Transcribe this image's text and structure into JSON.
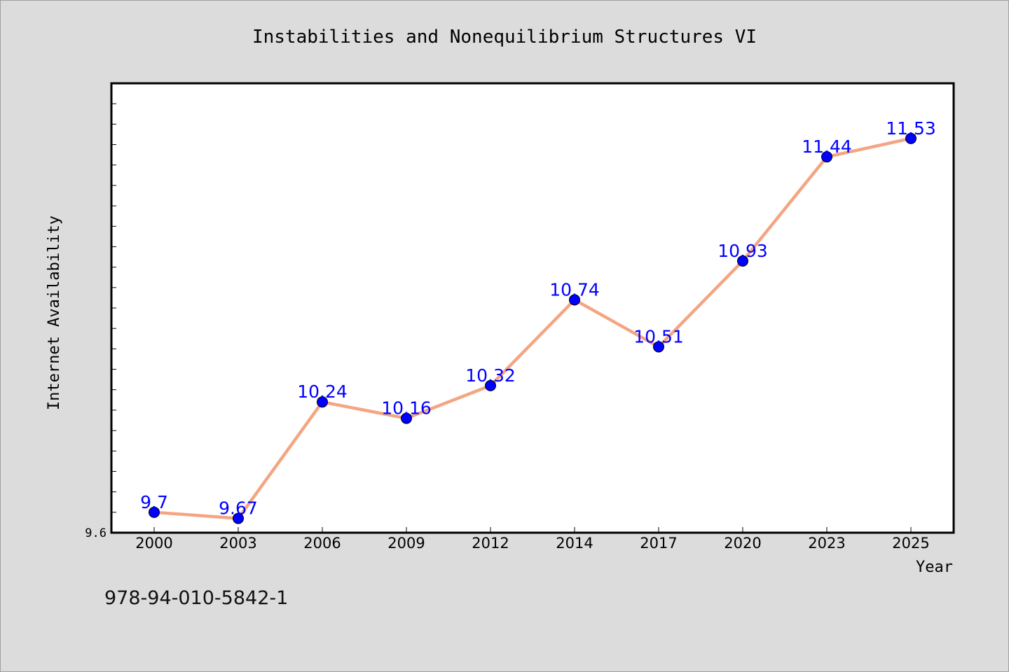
{
  "page": {
    "footer_code": "978-94-010-5842-1"
  },
  "colors": {
    "background": "#dcdcdc",
    "plot_background": "#ffffff",
    "line": "#f4a582",
    "marker": "#0000ff",
    "data_label": "#0000ff"
  },
  "chart_data": {
    "type": "line",
    "title": "Instabilities and Nonequilibrium Structures VI",
    "xlabel": "Year",
    "ylabel": "Internet Availability",
    "categories": [
      "2000",
      "2003",
      "2006",
      "2009",
      "2012",
      "2014",
      "2017",
      "2020",
      "2023",
      "2025"
    ],
    "series": [
      {
        "values": [
          9.7,
          9.67,
          10.24,
          10.16,
          10.32,
          10.74,
          10.51,
          10.93,
          11.44,
          11.53
        ]
      }
    ],
    "ylim": [
      9.6,
      11.8
    ],
    "y_tick_labels": [
      {
        "value": 9.6,
        "label": "9.6"
      }
    ],
    "y_minor_tick_step": 0.1,
    "grid": false,
    "legend": "none",
    "data_labels": true
  }
}
